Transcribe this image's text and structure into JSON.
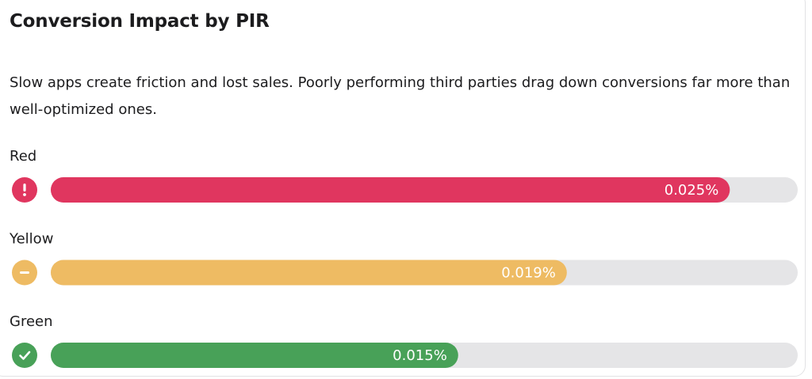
{
  "chart_data": {
    "type": "bar",
    "orientation": "horizontal",
    "title": "Conversion Impact by PIR",
    "subtitle": "Slow apps create friction and lost sales. Poorly performing third parties drag down conversions far more than well-optimized ones.",
    "categories": [
      "Red",
      "Yellow",
      "Green"
    ],
    "values": [
      0.025,
      0.019,
      0.015
    ],
    "value_labels": [
      "0.025%",
      "0.019%",
      "0.015%"
    ],
    "colors": [
      "#e0365f",
      "#eebb63",
      "#48a158"
    ],
    "track_color": "#e5e5e7",
    "xlim": [
      0,
      0.0275
    ]
  }
}
